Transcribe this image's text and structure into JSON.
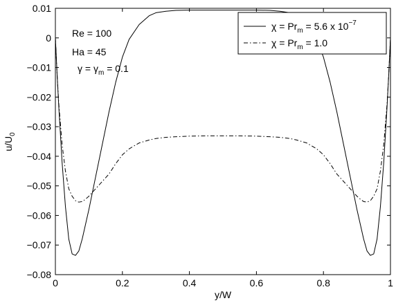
{
  "chart_data": {
    "type": "line",
    "xlabel": "y/W",
    "ylabel": {
      "main": "u/U",
      "sub": "0"
    },
    "xlim": [
      0,
      1
    ],
    "ylim": [
      -0.08,
      0.01
    ],
    "xticks": [
      0,
      0.2,
      0.4,
      0.6,
      0.8,
      1
    ],
    "xtick_labels": [
      "0",
      "0.2",
      "0.4",
      "0.6",
      "0.8",
      "1"
    ],
    "yticks": [
      0.01,
      0,
      -0.01,
      -0.02,
      -0.03,
      -0.04,
      -0.05,
      -0.06,
      -0.07,
      -0.08
    ],
    "ytick_labels": [
      "0.01",
      "0",
      "−0.01",
      "−0.02",
      "−0.03",
      "−0.04",
      "−0.05",
      "−0.06",
      "−0.07",
      "−0.08"
    ],
    "grid": false,
    "legend_position": "top-right",
    "annotations": [
      {
        "text": "Re = 100"
      },
      {
        "text": "Ha = 45"
      },
      {
        "greek": "γ",
        "eq": " = ",
        "greek2": "γ",
        "sub": "m",
        "value": " = 0.1"
      }
    ],
    "series": [
      {
        "legend": {
          "greek": "χ",
          "mid": " = Pr",
          "sub": "m",
          "value": " = 5.6 x 10",
          "sup": "−7"
        },
        "style": "solid",
        "x": [
          0,
          0.005,
          0.01,
          0.02,
          0.03,
          0.04,
          0.05,
          0.06,
          0.07,
          0.08,
          0.09,
          0.1,
          0.12,
          0.14,
          0.16,
          0.18,
          0.2,
          0.22,
          0.25,
          0.28,
          0.3,
          0.33,
          0.36,
          0.4,
          0.45,
          0.5,
          0.55,
          0.6,
          0.64,
          0.67,
          0.7,
          0.72,
          0.75,
          0.78,
          0.8,
          0.82,
          0.84,
          0.86,
          0.88,
          0.9,
          0.91,
          0.92,
          0.93,
          0.94,
          0.95,
          0.96,
          0.97,
          0.98,
          0.99,
          0.995,
          1
        ],
        "y": [
          0,
          -0.012,
          -0.023,
          -0.042,
          -0.057,
          -0.068,
          -0.073,
          -0.0735,
          -0.072,
          -0.068,
          -0.063,
          -0.058,
          -0.047,
          -0.036,
          -0.025,
          -0.015,
          -0.0065,
          -0.0005,
          0.0045,
          0.0075,
          0.0085,
          0.009,
          0.0093,
          0.0094,
          0.0094,
          0.0094,
          0.0094,
          0.0094,
          0.0093,
          0.009,
          0.0085,
          0.0075,
          0.0045,
          -0.0005,
          -0.0065,
          -0.015,
          -0.025,
          -0.036,
          -0.047,
          -0.058,
          -0.063,
          -0.068,
          -0.072,
          -0.0735,
          -0.073,
          -0.068,
          -0.057,
          -0.042,
          -0.023,
          -0.012,
          0
        ]
      },
      {
        "legend": {
          "greek": "χ",
          "mid": " = Pr",
          "sub": "m",
          "value": " = 1.0"
        },
        "style": "dashdot",
        "x": [
          0,
          0.005,
          0.01,
          0.02,
          0.03,
          0.04,
          0.05,
          0.06,
          0.07,
          0.08,
          0.09,
          0.1,
          0.12,
          0.14,
          0.16,
          0.18,
          0.2,
          0.22,
          0.25,
          0.28,
          0.3,
          0.33,
          0.36,
          0.4,
          0.45,
          0.5,
          0.55,
          0.6,
          0.64,
          0.67,
          0.7,
          0.72,
          0.75,
          0.78,
          0.8,
          0.82,
          0.84,
          0.86,
          0.88,
          0.9,
          0.91,
          0.92,
          0.93,
          0.94,
          0.95,
          0.96,
          0.97,
          0.98,
          0.99,
          0.995,
          1
        ],
        "y": [
          0,
          -0.012,
          -0.022,
          -0.036,
          -0.045,
          -0.051,
          -0.0535,
          -0.055,
          -0.0555,
          -0.0553,
          -0.0545,
          -0.0535,
          -0.051,
          -0.0485,
          -0.046,
          -0.0425,
          -0.0395,
          -0.0375,
          -0.0355,
          -0.0345,
          -0.034,
          -0.0336,
          -0.0334,
          -0.0332,
          -0.0331,
          -0.0331,
          -0.0331,
          -0.0332,
          -0.0334,
          -0.0336,
          -0.034,
          -0.0345,
          -0.0355,
          -0.0375,
          -0.0395,
          -0.0425,
          -0.046,
          -0.0485,
          -0.051,
          -0.0535,
          -0.0545,
          -0.0553,
          -0.0555,
          -0.055,
          -0.0535,
          -0.051,
          -0.045,
          -0.036,
          -0.022,
          -0.012,
          0
        ]
      }
    ]
  }
}
